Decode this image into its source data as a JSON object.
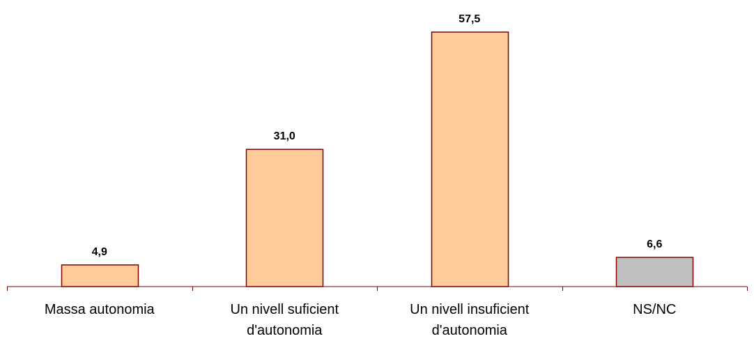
{
  "chart_data": {
    "type": "bar",
    "categories": [
      [
        "Massa autonomia"
      ],
      [
        "Un nivell suficient",
        "d'autonomia"
      ],
      [
        "Un nivell insuficient",
        "d'autonomia"
      ],
      [
        "NS/NC"
      ]
    ],
    "values": [
      4.9,
      31.0,
      57.5,
      6.6
    ],
    "value_labels": [
      "4,9",
      "31,0",
      "57,5",
      "6,6"
    ],
    "bar_colors": [
      "#FFCC99",
      "#FFCC99",
      "#FFCC99",
      "#C0C0C0"
    ],
    "bar_border_color": "#800000",
    "axis_color": "#800000",
    "title": "",
    "xlabel": "",
    "ylabel": "",
    "ylim": [
      0,
      57.5
    ],
    "grid": false,
    "legend": "none"
  }
}
